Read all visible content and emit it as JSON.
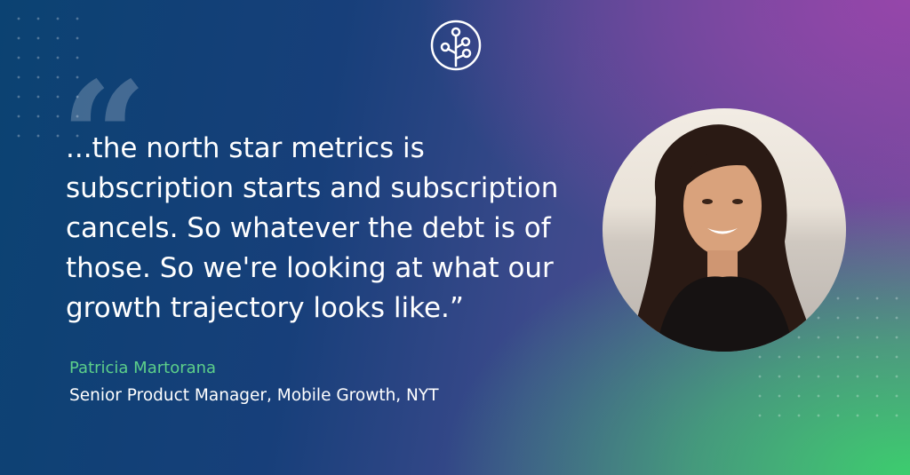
{
  "logo": {
    "icon": "tree-circuit-logo"
  },
  "quote": {
    "mark": "“",
    "lines": [
      " ...the north star metrics is",
      "subscription starts and subscription",
      "cancels. So whatever the debt is of",
      "those. So we're looking at what our",
      "growth trajectory looks like.”"
    ]
  },
  "attribution": {
    "name": "Patricia Martorana",
    "title": "Senior Product Manager, Mobile Growth, NYT"
  },
  "colors": {
    "name_accent": "#5dd08a",
    "text": "#ffffff"
  }
}
